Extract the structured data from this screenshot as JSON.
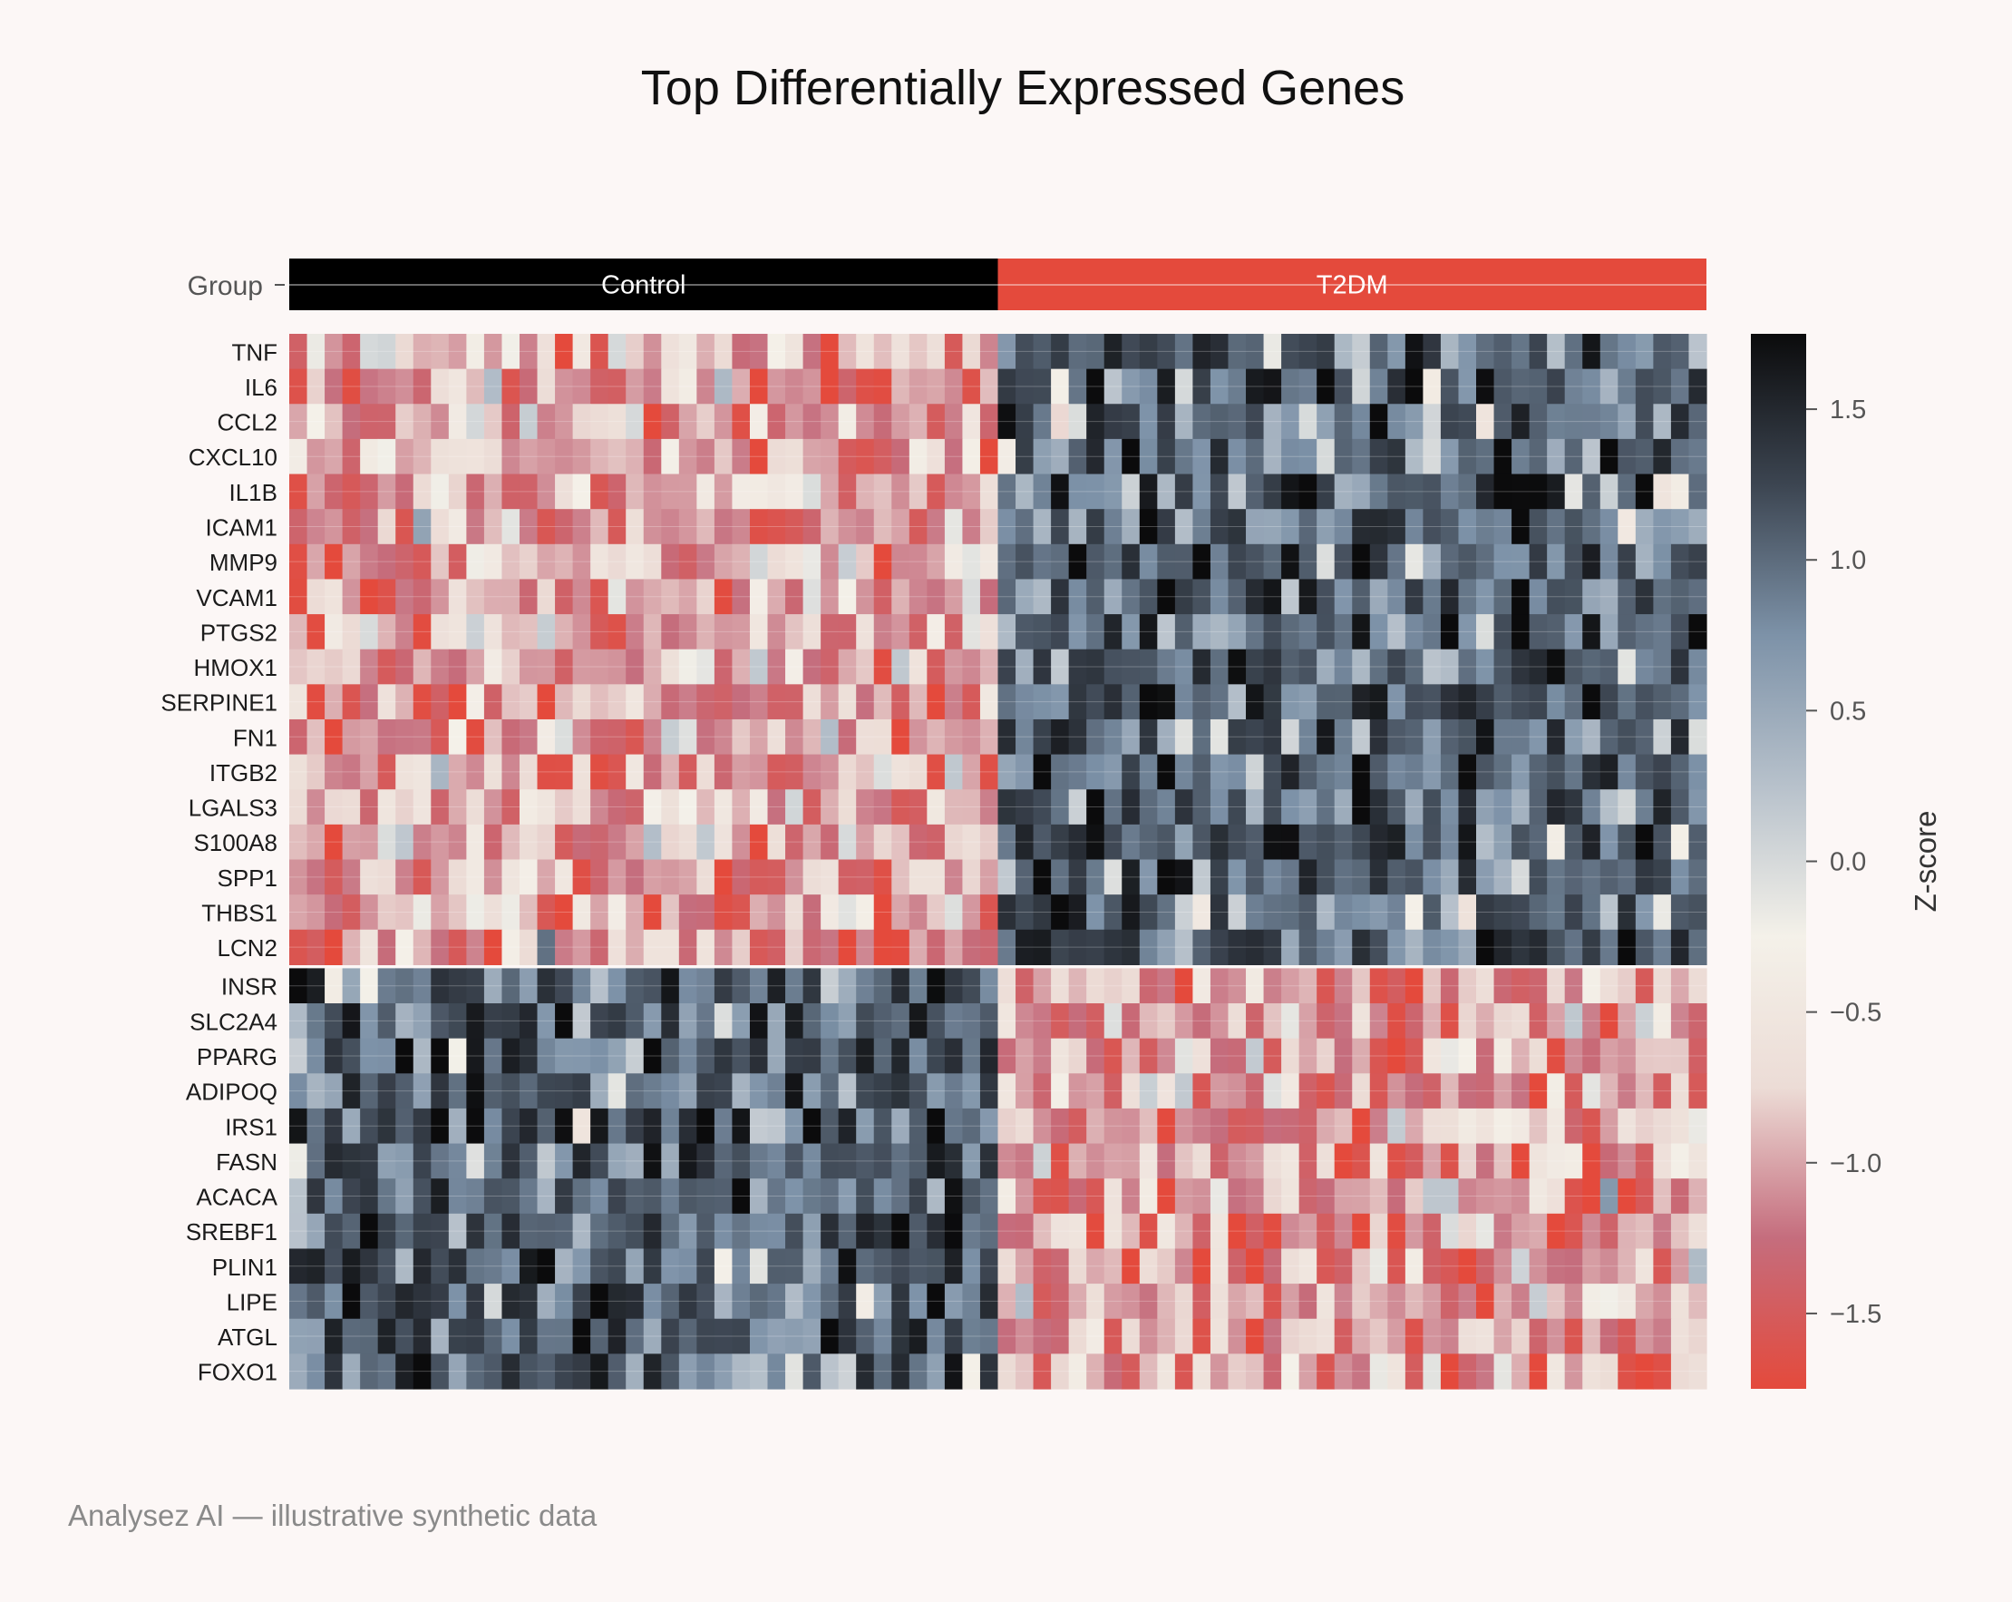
{
  "chart_data": {
    "type": "heatmap",
    "title": "Top Differentially Expressed Genes",
    "group_label": "Group",
    "groups": [
      {
        "name": "Control",
        "color": "#000000"
      },
      {
        "name": "T2DM",
        "color": "#e44a3c"
      }
    ],
    "samples_per_group": 40,
    "rows": [
      "TNF",
      "IL6",
      "CCL2",
      "CXCL10",
      "IL1B",
      "ICAM1",
      "MMP9",
      "VCAM1",
      "PTGS2",
      "HMOX1",
      "SERPINE1",
      "FN1",
      "ITGB2",
      "LGALS3",
      "S100A8",
      "SPP1",
      "THBS1",
      "LCN2",
      "INSR",
      "SLC2A4",
      "PPARG",
      "ADIPOQ",
      "IRS1",
      "FASN",
      "ACACA",
      "SREBF1",
      "PLIN1",
      "LIPE",
      "ATGL",
      "FOXO1"
    ],
    "up_in_t2dm": [
      "TNF",
      "IL6",
      "CCL2",
      "CXCL10",
      "IL1B",
      "ICAM1",
      "MMP9",
      "VCAM1",
      "PTGS2",
      "HMOX1",
      "SERPINE1",
      "FN1",
      "ITGB2",
      "LGALS3",
      "S100A8",
      "SPP1",
      "THBS1",
      "LCN2"
    ],
    "down_in_t2dm": [
      "INSR",
      "SLC2A4",
      "PPARG",
      "ADIPOQ",
      "IRS1",
      "FASN",
      "ACACA",
      "SREBF1",
      "PLIN1",
      "LIPE",
      "ATGL",
      "FOXO1"
    ],
    "typical_zscore_low": -1.1,
    "typical_zscore_high": 1.1,
    "colorbar": {
      "label": "Z-score",
      "range": [
        -1.75,
        1.75
      ],
      "ticks": [
        1.5,
        1.0,
        0.5,
        0.0,
        -0.5,
        -1.0,
        -1.5
      ],
      "tick_labels": [
        "1.5",
        "1.0",
        "0.5",
        "0.0",
        "−0.5",
        "−1.0",
        "−1.5"
      ],
      "colors": [
        "#e44a3c",
        "#c56d7d",
        "#ecdcd6",
        "#f4f1e9",
        "#b7c1cb",
        "#7d92a8",
        "#3c4551",
        "#0b0b0c"
      ]
    }
  },
  "footer": "Analysez AI — illustrative synthetic data"
}
